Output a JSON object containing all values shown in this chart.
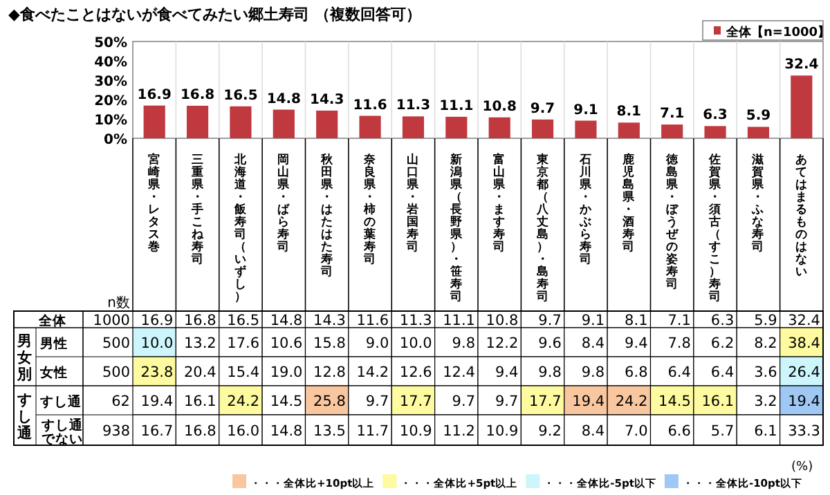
{
  "chart_data": [
    {
      "type": "bar",
      "title": "◆食べたことはないが食べてみたい郷土寿司 （複数回答可）",
      "categories": [
        null,
        null,
        null,
        null,
        null,
        null,
        null,
        null,
        null,
        null,
        null,
        null,
        null,
        null,
        null,
        null
      ],
      "series": [
        {
          "name": "全体【n=1000】",
          "color": "#c0393f",
          "values": [
            16.9,
            16.8,
            16.5,
            14.8,
            14.3,
            11.6,
            11.3,
            11.1,
            10.8,
            9.7,
            9.1,
            8.1,
            7.1,
            6.3,
            5.9,
            32.4
          ],
          "value_labels": [
            "16.9",
            "16.8",
            "16.5",
            "14.8",
            "14.3",
            "11.6",
            "11.3",
            "11.1",
            "10.8",
            "9.7",
            "9.1",
            "8.1",
            "7.1",
            "6.3",
            "5.9",
            "32.4"
          ]
        }
      ],
      "ylim": [
        0,
        50
      ],
      "yticks": [
        {
          "value": 0,
          "label": "0%"
        },
        {
          "value": 10,
          "label": "10%"
        },
        {
          "value": 20,
          "label": "20%"
        },
        {
          "value": 30,
          "label": "30%"
        },
        {
          "value": 40,
          "label": "40%"
        },
        {
          "value": 50,
          "label": "50%"
        }
      ],
      "legend": "top right"
    },
    {
      "type": "heatmap",
      "categories": [
        "宮崎県・レタス巻",
        "三重県・手こね寿司",
        "北海道・飯寿司（いずし）",
        "岡山県・ばら寿司",
        "秋田県・はたはた寿司",
        "奈良県・柿の葉寿司",
        "山口県・岩国寿司",
        "新潟県（長野県）・笹寿司",
        "富山県・ます寿司",
        "東京都（八丈島）・島寿司",
        "石川県・かぶら寿司",
        "鹿児島県・酒寿司",
        "徳島県・ぼうぜの姿寿司",
        "佐賀県・須古（すこ）寿司",
        "滋賀県・ふな寿司",
        "あてはまるものはない"
      ],
      "y_categories": [
        "全体",
        "男性",
        "女性",
        "すし通",
        "すし通でない"
      ],
      "y2_categories": [
        "1000",
        "500",
        "500",
        "62",
        "938"
      ],
      "cells": [
        [
          16.9,
          16.8,
          16.5,
          14.8,
          14.3,
          11.6,
          11.3,
          11.1,
          10.8,
          9.7,
          9.1,
          8.1,
          7.1,
          6.3,
          5.9,
          32.4
        ],
        [
          10.0,
          13.2,
          17.6,
          10.6,
          15.8,
          9.0,
          10.0,
          9.8,
          12.2,
          9.6,
          8.4,
          9.4,
          7.8,
          6.2,
          8.2,
          38.4
        ],
        [
          23.8,
          20.4,
          15.4,
          19.0,
          12.8,
          14.2,
          12.6,
          12.4,
          9.4,
          9.8,
          9.8,
          6.8,
          6.4,
          6.4,
          3.6,
          26.4
        ],
        [
          19.4,
          16.1,
          24.2,
          14.5,
          25.8,
          9.7,
          17.7,
          9.7,
          9.7,
          17.7,
          19.4,
          24.2,
          14.5,
          16.1,
          3.2,
          19.4
        ],
        [
          16.7,
          16.8,
          16.0,
          14.8,
          13.5,
          11.7,
          10.9,
          11.2,
          10.9,
          9.2,
          8.4,
          7.0,
          6.6,
          5.7,
          6.1,
          33.3
        ]
      ],
      "cell_labels": [
        [
          "16.9",
          "16.8",
          "16.5",
          "14.8",
          "14.3",
          "11.6",
          "11.3",
          "11.1",
          "10.8",
          "9.7",
          "9.1",
          "8.1",
          "7.1",
          "6.3",
          "5.9",
          "32.4"
        ],
        [
          "10.0",
          "13.2",
          "17.6",
          "10.6",
          "15.8",
          "9.0",
          "10.0",
          "9.8",
          "12.2",
          "9.6",
          "8.4",
          "9.4",
          "7.8",
          "6.2",
          "8.2",
          "38.4"
        ],
        [
          "23.8",
          "20.4",
          "15.4",
          "19.0",
          "12.8",
          "14.2",
          "12.6",
          "12.4",
          "9.4",
          "9.8",
          "9.8",
          "6.8",
          "6.4",
          "6.4",
          "3.6",
          "26.4"
        ],
        [
          "19.4",
          "16.1",
          "24.2",
          "14.5",
          "25.8",
          "9.7",
          "17.7",
          "9.7",
          "9.7",
          "17.7",
          "19.4",
          "24.2",
          "14.5",
          "16.1",
          "3.2",
          "19.4"
        ],
        [
          "16.7",
          "16.8",
          "16.0",
          "14.8",
          "13.5",
          "11.7",
          "10.9",
          "11.2",
          "10.9",
          "9.2",
          "8.4",
          "7.0",
          "6.6",
          "5.7",
          "6.1",
          "33.3"
        ]
      ],
      "annotations": [
        "n数",
        "男女別",
        "すし通",
        "・・・全体比+10pt以上",
        "・・・全体比+5pt以上",
        "・・・全体比-5pt以下",
        "・・・全体比-10pt以下",
        "(%)"
      ]
    }
  ]
}
